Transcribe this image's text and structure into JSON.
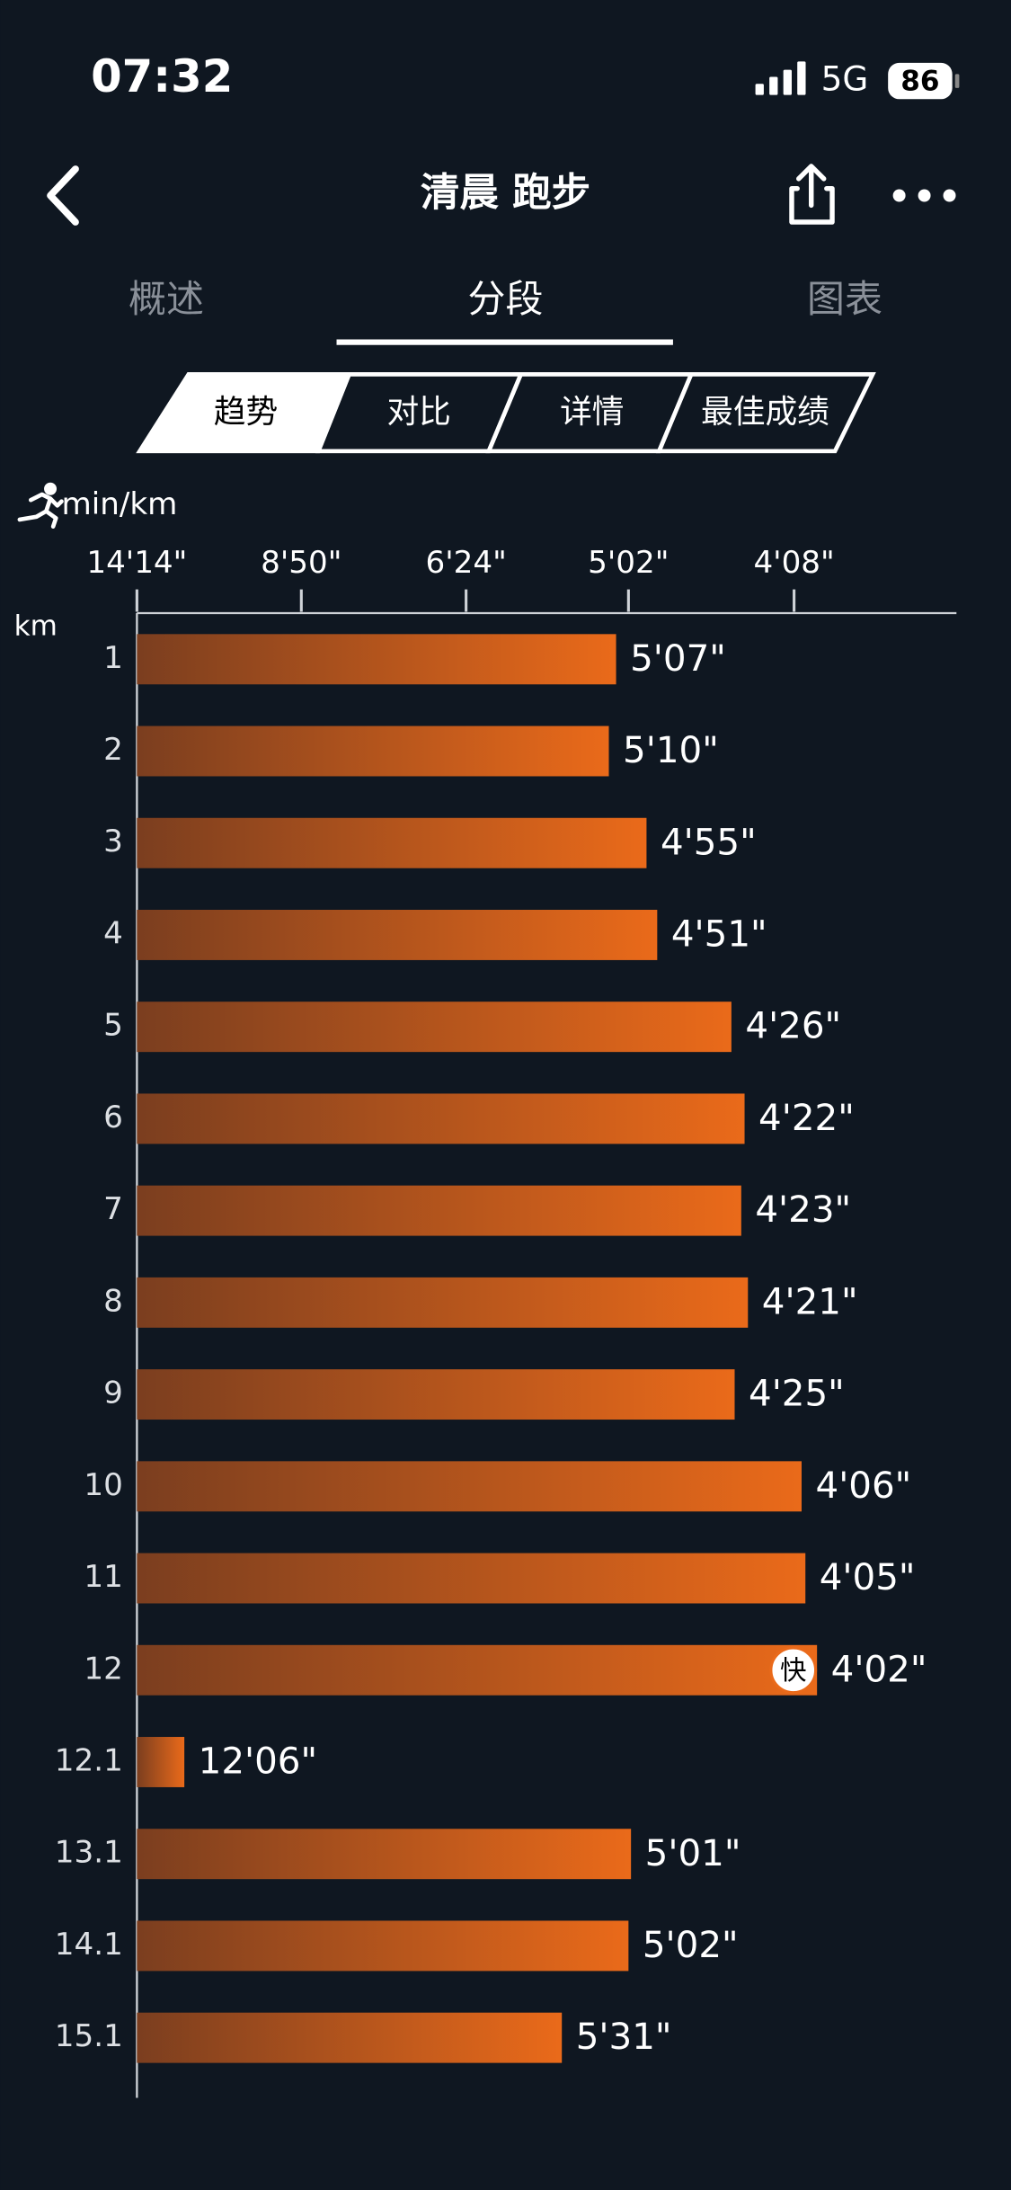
{
  "status_bar": {
    "time": "07:32",
    "network": "5G",
    "battery": "86"
  },
  "header": {
    "title": "清晨 跑步"
  },
  "tabs": [
    "概述",
    "分段",
    "图表"
  ],
  "sub_tabs": [
    "趋势",
    "对比",
    "详情",
    "最佳成绩"
  ],
  "chart_data": {
    "type": "bar",
    "orientation": "horizontal",
    "scale": "reciprocal",
    "unit_label": "min/km",
    "category_label": "km",
    "categories": [
      "1",
      "2",
      "3",
      "4",
      "5",
      "6",
      "7",
      "8",
      "9",
      "10",
      "11",
      "12",
      "12.1",
      "13.1",
      "14.1",
      "15.1"
    ],
    "values": [
      307,
      310,
      295,
      291,
      266,
      262,
      263,
      261,
      265,
      246,
      245,
      242,
      726,
      301,
      302,
      331
    ],
    "value_labels": [
      "5'07\"",
      "5'10\"",
      "4'55\"",
      "4'51\"",
      "4'26\"",
      "4'22\"",
      "4'23\"",
      "4'21\"",
      "4'25\"",
      "4'06\"",
      "4'05\"",
      "4'02\"",
      "12'06\"",
      "5'01\"",
      "5'02\"",
      "5'31\""
    ],
    "xlim": [
      854,
      211
    ],
    "xticks": [
      {
        "value": 854,
        "label": "14'14\""
      },
      {
        "value": 530,
        "label": "8'50\""
      },
      {
        "value": 384,
        "label": "6'24\""
      },
      {
        "value": 302,
        "label": "5'02\""
      },
      {
        "value": 248,
        "label": "4'08\""
      }
    ],
    "color_start": "#7b3e1f",
    "color_end": "#ea6a1a",
    "fast_badge": "快"
  }
}
